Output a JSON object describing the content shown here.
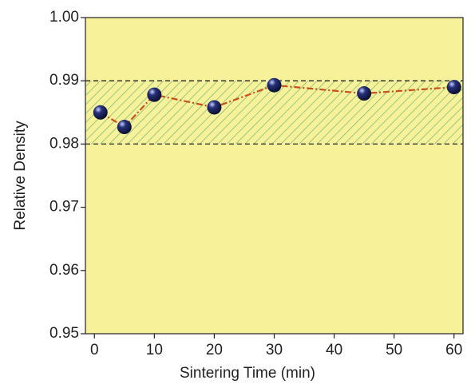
{
  "chart_data": {
    "type": "scatter",
    "xlabel": "Sintering Time (min)",
    "ylabel": "Relative Density",
    "x": [
      1,
      5,
      10,
      20,
      30,
      45,
      60
    ],
    "values": [
      0.985,
      0.9827,
      0.9878,
      0.9858,
      0.9893,
      0.988,
      0.989
    ],
    "color": "#26307a",
    "line_color": "#c8501e",
    "band": [
      0.98,
      0.99
    ],
    "band_color": "#7cb87a",
    "background": "#f7f29a",
    "xlim": [
      -1.5,
      61.5
    ],
    "xticks": [
      0,
      10,
      20,
      30,
      40,
      50,
      60
    ],
    "ylim": [
      0.95,
      1.0
    ],
    "yticks": [
      0.95,
      0.96,
      0.97,
      0.98,
      0.99,
      {
        "value": 1.0,
        "label": "1.00"
      }
    ]
  }
}
